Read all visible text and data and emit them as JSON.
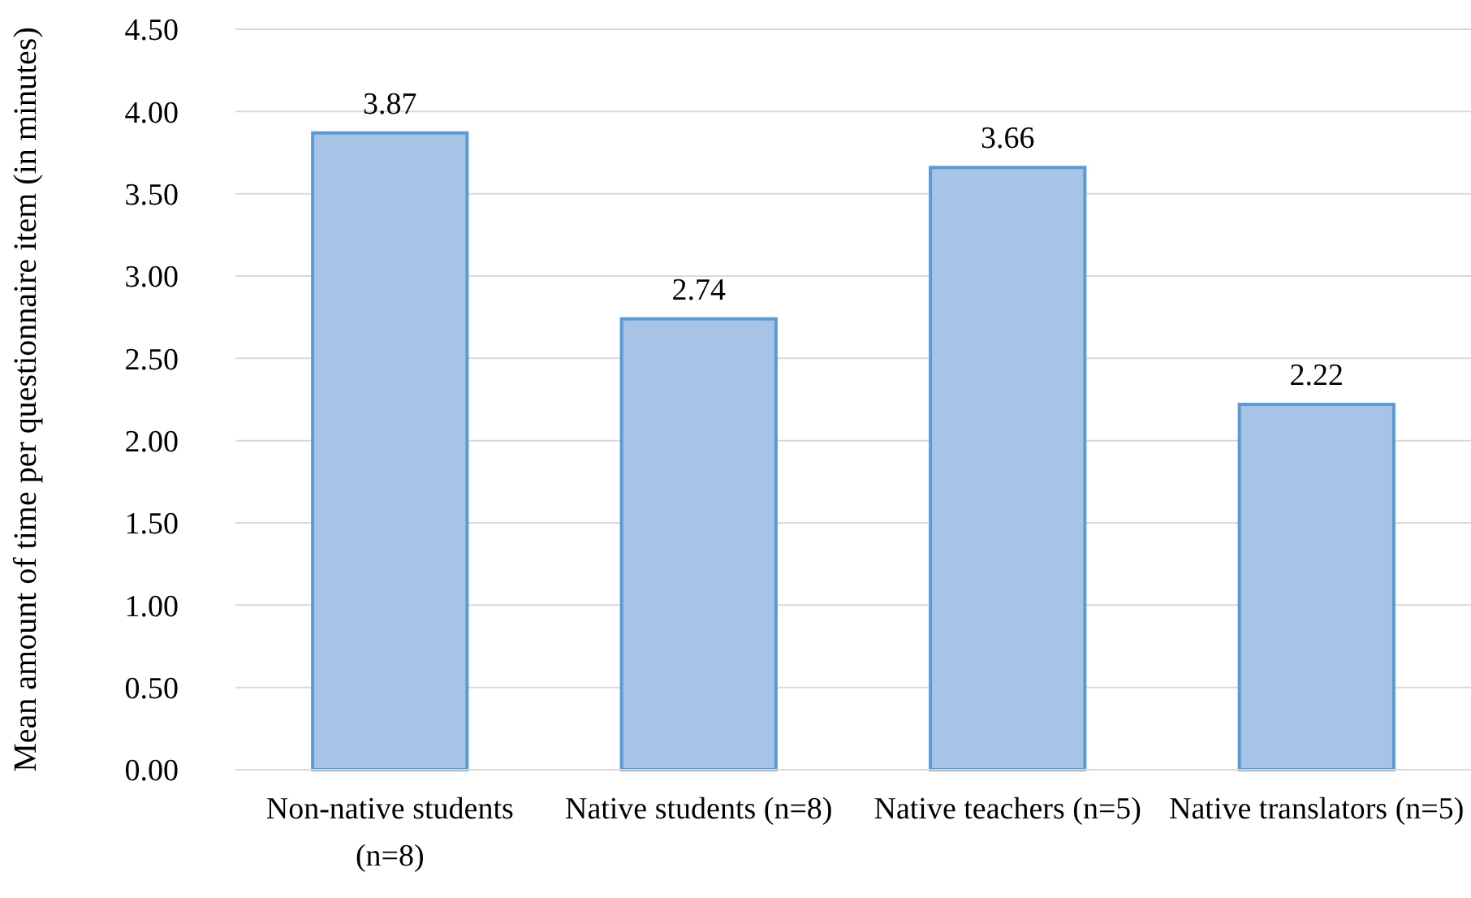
{
  "chart_data": {
    "type": "bar",
    "ylabel": "Mean amount of time per questionnaire item (in minutes)",
    "categories": [
      "Non-native students (n=8)",
      "Native students (n=8)",
      "Native teachers (n=5)",
      "Native translators (n=5)"
    ],
    "values": [
      3.87,
      2.74,
      3.66,
      2.22
    ],
    "color": "#a7c4e6",
    "ylim": [
      0,
      4.5
    ],
    "yticks": [
      {
        "value": 0,
        "label": "0.00"
      },
      {
        "value": 0.5,
        "label": "0.50"
      },
      {
        "value": 1,
        "label": "1.00"
      },
      {
        "value": 1.5,
        "label": "1.50"
      },
      {
        "value": 2,
        "label": "2.00"
      },
      {
        "value": 2.5,
        "label": "2.50"
      },
      {
        "value": 3,
        "label": "3.00"
      },
      {
        "value": 3.5,
        "label": "3.50"
      },
      {
        "value": 4,
        "label": "4.00"
      },
      {
        "value": 4.5,
        "label": "4.50"
      }
    ],
    "grid": true,
    "data_labels": true
  }
}
